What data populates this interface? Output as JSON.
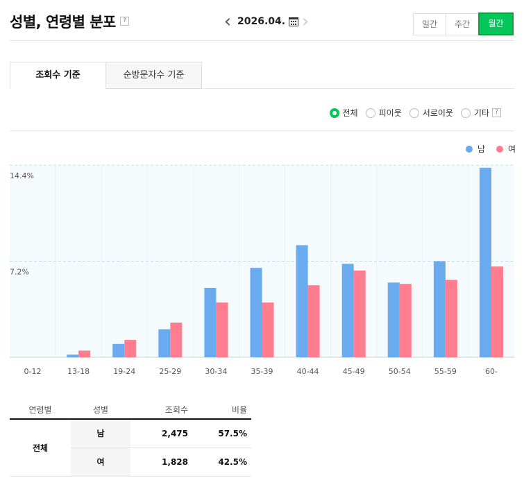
{
  "header": {
    "title": "성별, 연령별 분포",
    "help": "?",
    "date": "2026.04.",
    "prev_arrow": "‹",
    "next_arrow": "›",
    "periods": [
      {
        "label": "일간",
        "active": false
      },
      {
        "label": "주간",
        "active": false
      },
      {
        "label": "월간",
        "active": true
      }
    ]
  },
  "tabs": [
    {
      "label": "조회수 기준",
      "active": true
    },
    {
      "label": "순방문자수 기준",
      "active": false
    }
  ],
  "filters": {
    "options": [
      {
        "label": "전체",
        "selected": true
      },
      {
        "label": "피이웃",
        "selected": false
      },
      {
        "label": "서로이웃",
        "selected": false
      },
      {
        "label": "기타",
        "selected": false
      }
    ],
    "help": "?"
  },
  "colors": {
    "male": "#6aaaee",
    "female": "#ff7d8e",
    "accent": "#03c75a"
  },
  "chart_data": {
    "type": "bar",
    "categories": [
      "0-12",
      "13-18",
      "19-24",
      "25-29",
      "30-34",
      "35-39",
      "40-44",
      "45-49",
      "50-54",
      "55-59",
      "60-"
    ],
    "series": [
      {
        "name": "남",
        "values": [
          0,
          0.2,
          1.0,
          2.1,
          5.2,
          6.7,
          8.4,
          7.0,
          5.6,
          7.2,
          14.2
        ]
      },
      {
        "name": "여",
        "values": [
          0,
          0.5,
          1.3,
          2.6,
          4.1,
          4.1,
          5.4,
          6.5,
          5.5,
          5.8,
          6.8
        ]
      }
    ],
    "yticks": [
      "14.4%",
      "7.2%"
    ],
    "ytick_values": [
      14.4,
      7.2
    ],
    "ylim": [
      0,
      14.4
    ],
    "grid": true,
    "legend_position": "top-right"
  },
  "table": {
    "headers": [
      "연령별",
      "성별",
      "조회수",
      "비율"
    ],
    "group": "전체",
    "rows": [
      {
        "sex": "남",
        "views": "2,475",
        "ratio": "57.5%"
      },
      {
        "sex": "여",
        "views": "1,828",
        "ratio": "42.5%"
      }
    ]
  }
}
